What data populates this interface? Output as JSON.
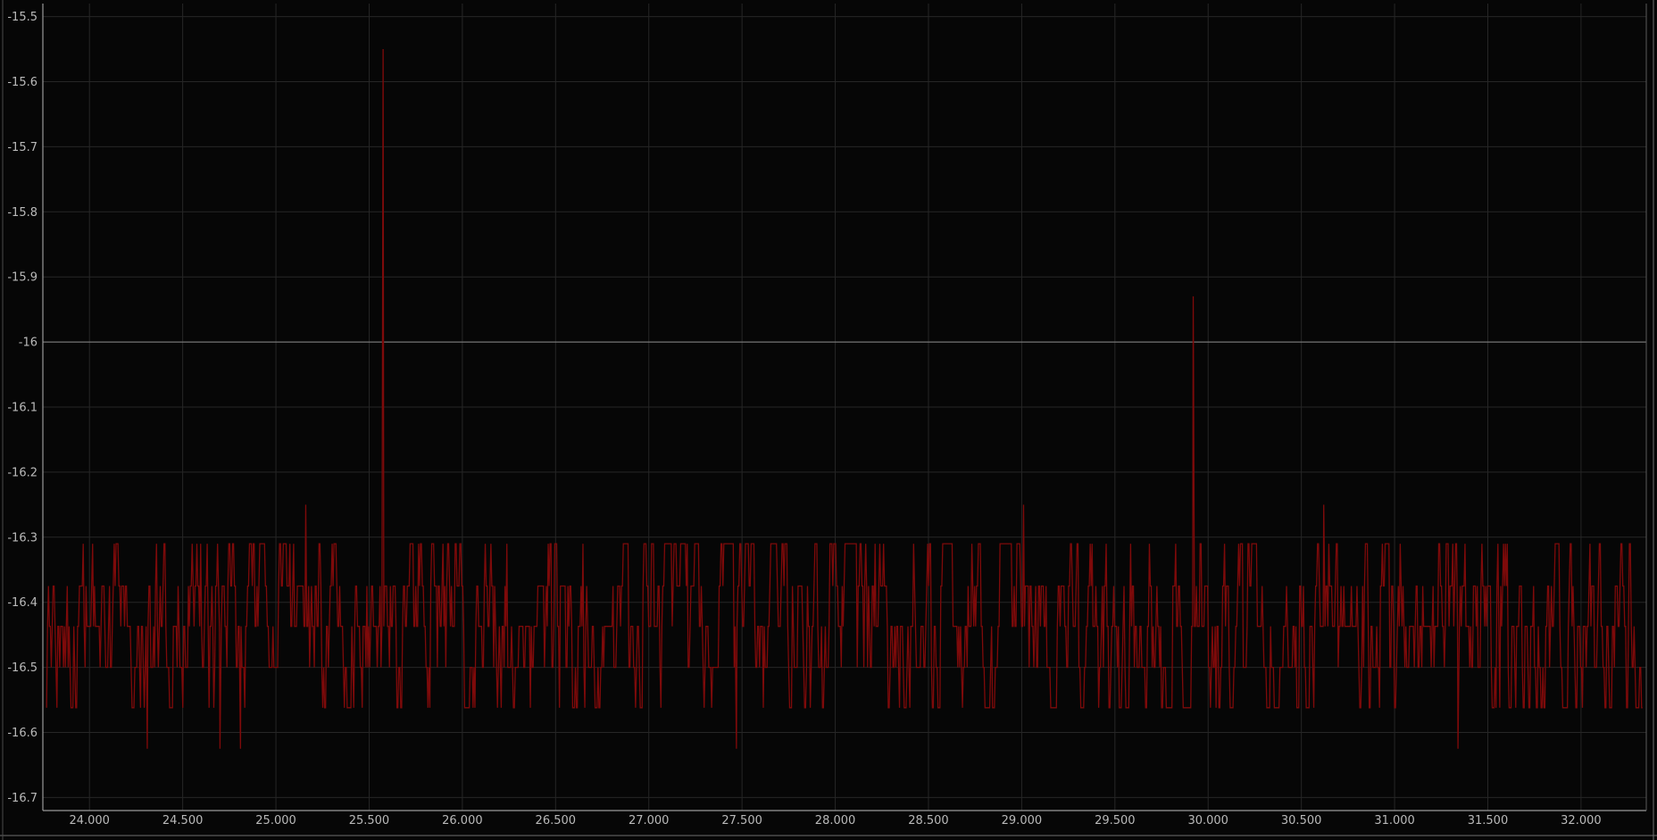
{
  "chart_data": {
    "type": "line",
    "title": "",
    "xlabel": "",
    "ylabel": "",
    "xlim": [
      23.75,
      32.35
    ],
    "ylim": [
      -16.72,
      -15.48
    ],
    "grid": true,
    "legend": "none",
    "colors": {
      "background": "#060606",
      "grid": "#262626",
      "frame": "#9a9a9a",
      "highlight_line": "#8a8a8a",
      "series": "#7e0a0a"
    },
    "x_ticks": [
      {
        "value": 24.0,
        "label": "24.000"
      },
      {
        "value": 24.5,
        "label": "24.500"
      },
      {
        "value": 25.0,
        "label": "25.000"
      },
      {
        "value": 25.5,
        "label": "25.500"
      },
      {
        "value": 26.0,
        "label": "26.000"
      },
      {
        "value": 26.5,
        "label": "26.500"
      },
      {
        "value": 27.0,
        "label": "27.000"
      },
      {
        "value": 27.5,
        "label": "27.500"
      },
      {
        "value": 28.0,
        "label": "28.000"
      },
      {
        "value": 28.5,
        "label": "28.500"
      },
      {
        "value": 29.0,
        "label": "29.000"
      },
      {
        "value": 29.5,
        "label": "29.500"
      },
      {
        "value": 30.0,
        "label": "30.000"
      },
      {
        "value": 30.5,
        "label": "30.500"
      },
      {
        "value": 31.0,
        "label": "31.000"
      },
      {
        "value": 31.5,
        "label": "31.500"
      },
      {
        "value": 32.0,
        "label": "32.000"
      }
    ],
    "y_ticks": [
      {
        "value": -15.5,
        "label": "-15.5"
      },
      {
        "value": -15.6,
        "label": "-15.6"
      },
      {
        "value": -15.7,
        "label": "-15.7"
      },
      {
        "value": -15.8,
        "label": "-15.8"
      },
      {
        "value": -15.9,
        "label": "-15.9"
      },
      {
        "value": -16.0,
        "label": "-16"
      },
      {
        "value": -16.1,
        "label": "-16.1"
      },
      {
        "value": -16.2,
        "label": "-16.2"
      },
      {
        "value": -16.3,
        "label": "-16.3"
      },
      {
        "value": -16.4,
        "label": "-16.4"
      },
      {
        "value": -16.5,
        "label": "-16.5"
      },
      {
        "value": -16.6,
        "label": "-16.6"
      },
      {
        "value": -16.7,
        "label": "-16.7"
      }
    ],
    "reference_line_y": -16.0,
    "series": [
      {
        "levels": [
          -16.31,
          -16.375,
          -16.437,
          -16.5,
          -16.562
        ],
        "base_level": -16.437,
        "x_range": [
          23.77,
          32.33
        ],
        "sample_count": 1700,
        "spikes": [
          {
            "x": 24.31,
            "y": -16.625
          },
          {
            "x": 24.7,
            "y": -16.625
          },
          {
            "x": 24.81,
            "y": -16.625
          },
          {
            "x": 25.16,
            "y": -16.25
          },
          {
            "x": 25.575,
            "y": -15.55
          },
          {
            "x": 27.47,
            "y": -16.625
          },
          {
            "x": 29.01,
            "y": -16.25
          },
          {
            "x": 29.92,
            "y": -15.93
          },
          {
            "x": 30.62,
            "y": -16.25
          },
          {
            "x": 31.34,
            "y": -16.625
          }
        ]
      }
    ]
  }
}
